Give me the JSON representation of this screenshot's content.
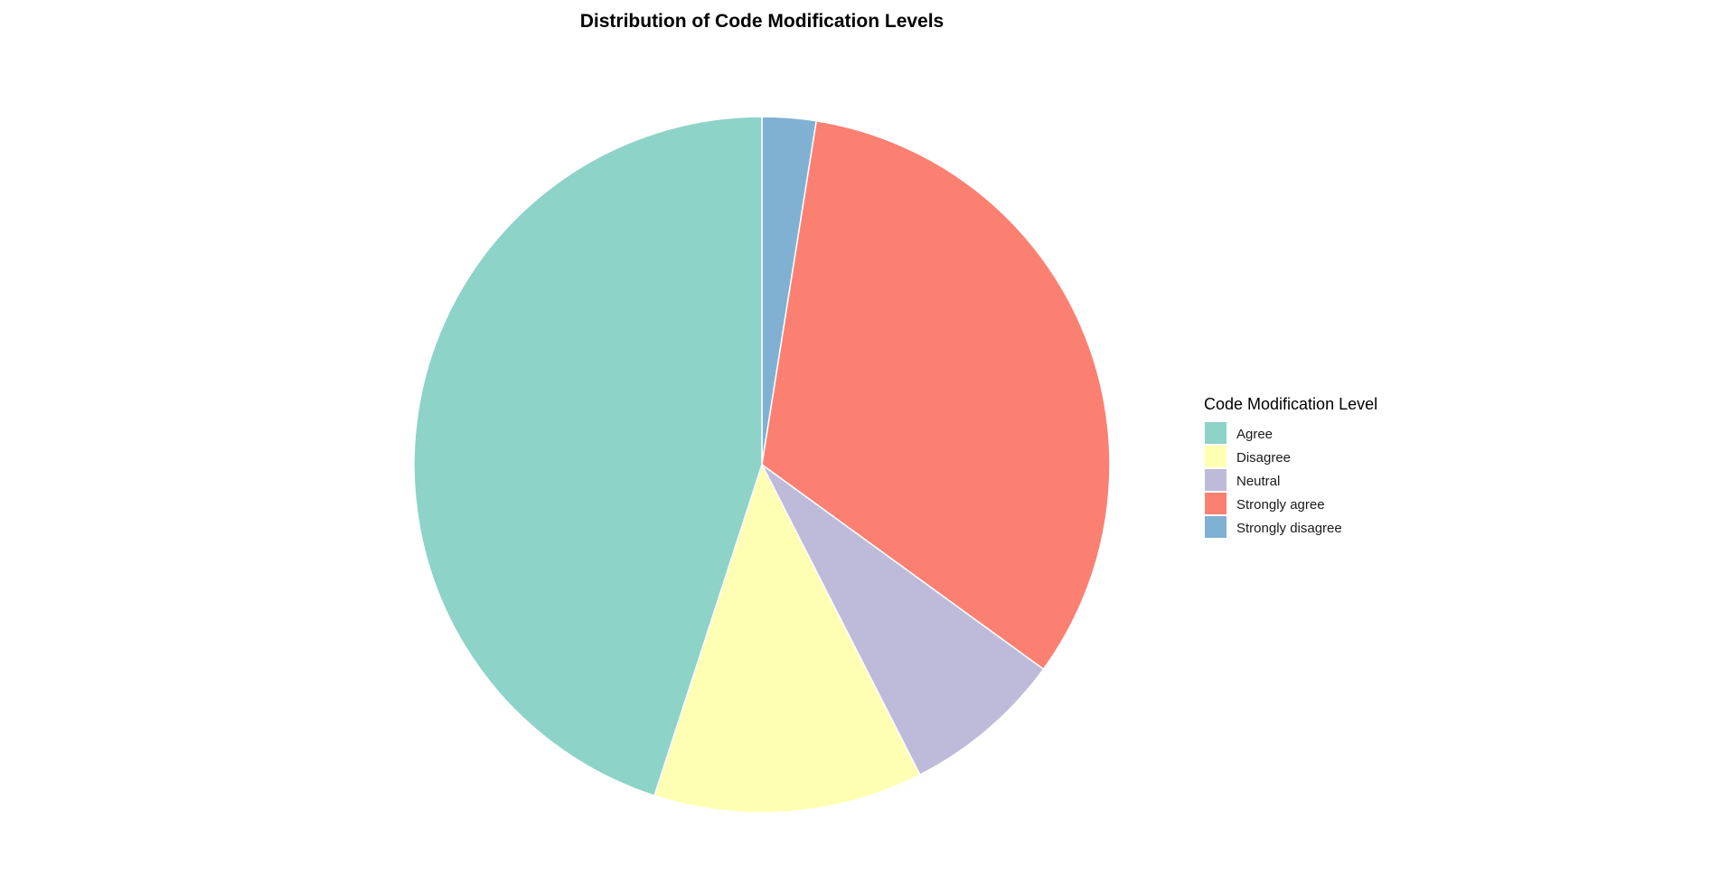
{
  "chart_data": {
    "type": "pie",
    "title": "Distribution of Code Modification Levels",
    "legend_title": "Code Modification Level",
    "legend_position": "right",
    "start": "top",
    "direction": "clockwise",
    "slices": [
      {
        "label": "Strongly disagree",
        "value": 2.5,
        "color": "#80B1D3"
      },
      {
        "label": "Strongly agree",
        "value": 32.5,
        "color": "#FB8072"
      },
      {
        "label": "Neutral",
        "value": 7.5,
        "color": "#BEBADA"
      },
      {
        "label": "Disagree",
        "value": 12.5,
        "color": "#FFFFB3"
      },
      {
        "label": "Agree",
        "value": 45.0,
        "color": "#8DD3C7"
      }
    ],
    "legend_order": [
      "Agree",
      "Disagree",
      "Neutral",
      "Strongly agree",
      "Strongly disagree"
    ]
  }
}
